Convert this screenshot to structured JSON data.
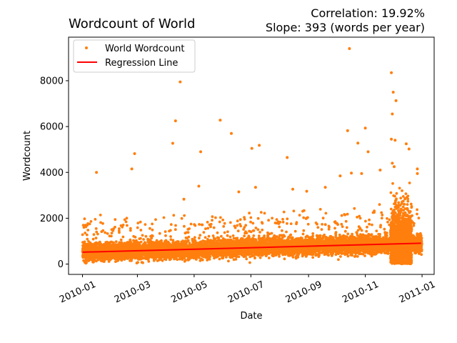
{
  "chart_data": {
    "type": "scatter",
    "title": "Wordcount of World",
    "annotations": [
      "Correlation: 19.92%",
      "Slope: 393 (words per year)"
    ],
    "xlabel": "Date",
    "ylabel": "Wordcount",
    "xlim": [
      "2009-12-17",
      "2011-01-14"
    ],
    "ylim": [
      -450,
      9900
    ],
    "x_ticks": [
      "2010-01",
      "2010-03",
      "2010-05",
      "2010-07",
      "2010-09",
      "2010-11",
      "2011-01"
    ],
    "y_ticks": [
      0,
      2000,
      4000,
      6000,
      8000
    ],
    "legend": {
      "position": "top-left",
      "entries": [
        "World Wordcount",
        "Regression Line"
      ]
    },
    "colors": {
      "points": "#ff7f0e",
      "regression": "#ff0000"
    },
    "series": [
      {
        "name": "World Wordcount",
        "type": "scatter",
        "points": [
          [
            "2010-01-16",
            4000
          ],
          [
            "2010-02-23",
            4150
          ],
          [
            "2010-02-26",
            4820
          ],
          [
            "2010-04-08",
            5270
          ],
          [
            "2010-04-11",
            6250
          ],
          [
            "2010-04-16",
            7950
          ],
          [
            "2010-04-20",
            2830
          ],
          [
            "2010-05-06",
            3400
          ],
          [
            "2010-05-08",
            4900
          ],
          [
            "2010-05-29",
            6280
          ],
          [
            "2010-06-10",
            5700
          ],
          [
            "2010-06-18",
            3150
          ],
          [
            "2010-07-02",
            5050
          ],
          [
            "2010-07-06",
            3350
          ],
          [
            "2010-07-10",
            5180
          ],
          [
            "2010-08-09",
            4650
          ],
          [
            "2010-08-15",
            3270
          ],
          [
            "2010-08-30",
            3180
          ],
          [
            "2010-09-19",
            3350
          ],
          [
            "2010-10-05",
            3850
          ],
          [
            "2010-10-13",
            5820
          ],
          [
            "2010-10-15",
            9400
          ],
          [
            "2010-10-17",
            3970
          ],
          [
            "2010-10-24",
            5280
          ],
          [
            "2010-10-28",
            3950
          ],
          [
            "2010-11-01",
            5930
          ],
          [
            "2010-11-04",
            4900
          ],
          [
            "2010-11-17",
            4100
          ],
          [
            "2010-11-29",
            8350
          ],
          [
            "2010-11-30",
            6550
          ],
          [
            "2010-12-01",
            7500
          ],
          [
            "2010-12-04",
            7130
          ],
          [
            "2010-12-03",
            5400
          ],
          [
            "2010-11-29",
            5450
          ],
          [
            "2010-12-15",
            5250
          ],
          [
            "2010-12-18",
            5020
          ],
          [
            "2010-12-27",
            4150
          ],
          [
            "2010-12-27",
            3950
          ],
          [
            "2010-11-30",
            4400
          ],
          [
            "2010-12-02",
            4250
          ]
        ]
      },
      {
        "name": "Regression Line",
        "type": "line",
        "points": [
          [
            "2010-01-01",
            520
          ],
          [
            "2010-12-31",
            910
          ]
        ]
      }
    ]
  }
}
